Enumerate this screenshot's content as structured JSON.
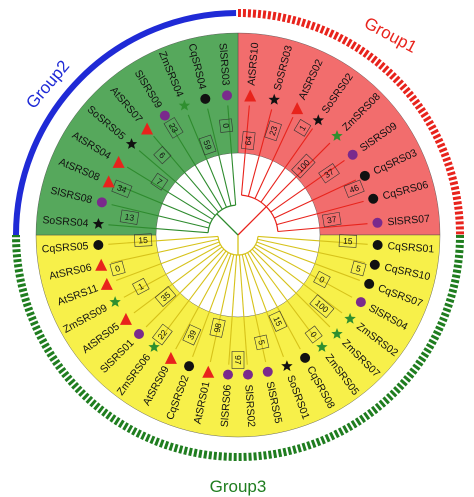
{
  "groups": [
    {
      "name": "Group1",
      "color": "#e8231c",
      "fill": "#f26d6d"
    },
    {
      "name": "Group2",
      "color": "#1f2ad6",
      "fill": "#56a85c"
    },
    {
      "name": "Group3",
      "color": "#1f7d1f",
      "fill": "#f7f04a"
    }
  ],
  "leaves": [
    {
      "label": "AtSRS10",
      "group": "Group1",
      "marker": "triangle"
    },
    {
      "label": "SoSRS03",
      "group": "Group1",
      "marker": "star"
    },
    {
      "label": "AtSRS02",
      "group": "Group1",
      "marker": "triangle"
    },
    {
      "label": "SoSRS02",
      "group": "Group1",
      "marker": "star"
    },
    {
      "label": "ZmSRS08",
      "group": "Group1",
      "marker": "star-green"
    },
    {
      "label": "SlSRS09",
      "group": "Group1",
      "marker": "circle-purple"
    },
    {
      "label": "CqSRS03",
      "group": "Group1",
      "marker": "circle"
    },
    {
      "label": "CqSRS06",
      "group": "Group1",
      "marker": "circle"
    },
    {
      "label": "SlSRS07",
      "group": "Group1",
      "marker": "circle-purple"
    },
    {
      "label": "CqSRS01",
      "group": "Group3",
      "marker": "circle"
    },
    {
      "label": "CqSRS10",
      "group": "Group3",
      "marker": "circle"
    },
    {
      "label": "CqSRS07",
      "group": "Group3",
      "marker": "circle"
    },
    {
      "label": "SlSRS04",
      "group": "Group3",
      "marker": "circle-purple"
    },
    {
      "label": "ZmSRS02",
      "group": "Group3",
      "marker": "star-green"
    },
    {
      "label": "ZmSRS07",
      "group": "Group3",
      "marker": "star-green"
    },
    {
      "label": "ZmSRS05",
      "group": "Group3",
      "marker": "star-green"
    },
    {
      "label": "CqSRS08",
      "group": "Group3",
      "marker": "circle"
    },
    {
      "label": "SoSRS01",
      "group": "Group3",
      "marker": "star"
    },
    {
      "label": "SlSRS05",
      "group": "Group3",
      "marker": "circle-purple"
    },
    {
      "label": "SlSRS02",
      "group": "Group3",
      "marker": "circle-purple"
    },
    {
      "label": "SlSRS06",
      "group": "Group3",
      "marker": "circle-purple"
    },
    {
      "label": "AtSRS01",
      "group": "Group3",
      "marker": "triangle"
    },
    {
      "label": "CqSRS02",
      "group": "Group3",
      "marker": "circle"
    },
    {
      "label": "AtSRS09",
      "group": "Group3",
      "marker": "triangle"
    },
    {
      "label": "ZmSRS06",
      "group": "Group3",
      "marker": "star-green"
    },
    {
      "label": "SlSRS01",
      "group": "Group3",
      "marker": "circle-purple"
    },
    {
      "label": "AtSRS05",
      "group": "Group3",
      "marker": "triangle"
    },
    {
      "label": "ZmSRS09",
      "group": "Group3",
      "marker": "star-green"
    },
    {
      "label": "AtSRS11",
      "group": "Group3",
      "marker": "triangle"
    },
    {
      "label": "AtSRS06",
      "group": "Group3",
      "marker": "triangle"
    },
    {
      "label": "CqSRS05",
      "group": "Group3",
      "marker": "circle"
    },
    {
      "label": "SoSRS04",
      "group": "Group2",
      "marker": "star"
    },
    {
      "label": "SlSRS08",
      "group": "Group2",
      "marker": "circle-purple"
    },
    {
      "label": "AtSRS08",
      "group": "Group2",
      "marker": "triangle"
    },
    {
      "label": "AtSRS04",
      "group": "Group2",
      "marker": "triangle"
    },
    {
      "label": "SoSRS05",
      "group": "Group2",
      "marker": "star"
    },
    {
      "label": "AtSRS07",
      "group": "Group2",
      "marker": "triangle"
    },
    {
      "label": "SlSRS09",
      "group": "Group2",
      "marker": "circle-purple"
    },
    {
      "label": "ZmSRS04",
      "group": "Group2",
      "marker": "star-green"
    },
    {
      "label": "CqSRS04",
      "group": "Group2",
      "marker": "circle"
    },
    {
      "label": "SlSRS03",
      "group": "Group2",
      "marker": "circle-purple"
    }
  ],
  "bootstraps": [
    "64",
    "23",
    "1",
    "100",
    "37",
    "46",
    "37",
    "15",
    "5",
    "0",
    "100",
    "0",
    "15",
    "5",
    "97",
    "98",
    "39",
    "22",
    "35",
    "1",
    "0",
    "15",
    "13",
    "34",
    "7",
    "6",
    "23",
    "59",
    "0"
  ],
  "marker_colors": {
    "triangle": "#e8231c",
    "star": "#111111",
    "star-green": "#2f8f2f",
    "circle": "#111111",
    "circle-purple": "#7a2a8c"
  },
  "branch_colors": {
    "Group1": "#e8231c",
    "Group2": "#2e8b2e",
    "Group3": "#d6c21a"
  }
}
